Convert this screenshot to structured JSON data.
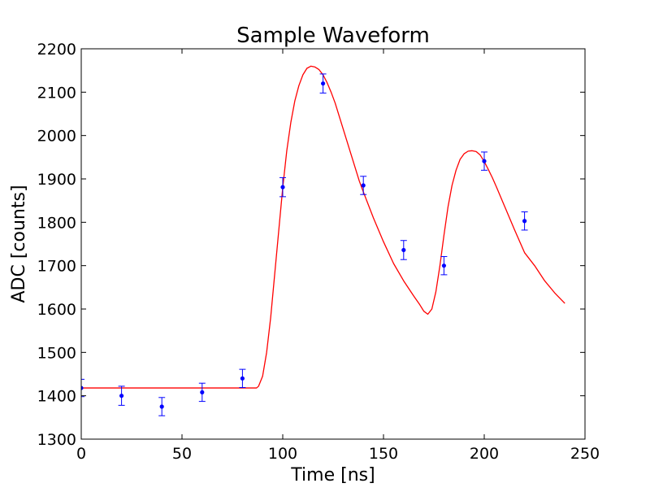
{
  "chart_data": {
    "type": "scatter",
    "title": "Sample Waveform",
    "xlabel": "Time [ns]",
    "ylabel": "ADC [counts]",
    "xlim": [
      0,
      250
    ],
    "ylim": [
      1300,
      2200
    ],
    "xticks": [
      0,
      50,
      100,
      150,
      200,
      250
    ],
    "yticks": [
      1300,
      1400,
      1500,
      1600,
      1700,
      1800,
      1900,
      2000,
      2100,
      2200
    ],
    "grid": false,
    "legend": "none",
    "series": [
      {
        "kind": "points_with_errorbars",
        "color": "#0000ff",
        "x": [
          0,
          20,
          40,
          60,
          80,
          100,
          120,
          140,
          160,
          180,
          200,
          220
        ],
        "y": [
          1418,
          1400,
          1375,
          1408,
          1440,
          1881,
          2120,
          1885,
          1736,
          1700,
          1941,
          1803
        ],
        "yerr": [
          20,
          22,
          21,
          21,
          21,
          22,
          22,
          21,
          22,
          21,
          21,
          21
        ]
      },
      {
        "kind": "fit_line",
        "color": "#ff0000",
        "x": [
          0,
          87,
          88,
          90,
          92,
          94,
          96,
          98,
          100,
          102,
          104,
          106,
          108,
          110,
          112,
          114,
          116,
          118,
          120,
          122,
          124,
          126,
          128,
          130,
          132,
          134,
          136,
          138,
          140,
          145,
          150,
          155,
          160,
          165,
          168,
          170,
          172,
          174,
          176,
          178,
          180,
          182,
          184,
          186,
          188,
          190,
          192,
          194,
          196,
          198,
          200,
          202,
          204,
          206,
          208,
          210,
          215,
          220,
          225,
          230,
          235,
          240
        ],
        "y": [
          1418,
          1418,
          1422,
          1445,
          1500,
          1580,
          1680,
          1780,
          1880,
          1965,
          2030,
          2080,
          2115,
          2140,
          2155,
          2160,
          2158,
          2152,
          2140,
          2122,
          2100,
          2075,
          2045,
          2015,
          1985,
          1955,
          1925,
          1895,
          1870,
          1810,
          1755,
          1705,
          1665,
          1630,
          1610,
          1595,
          1588,
          1600,
          1640,
          1700,
          1770,
          1835,
          1885,
          1920,
          1945,
          1958,
          1964,
          1965,
          1963,
          1955,
          1940,
          1922,
          1903,
          1882,
          1860,
          1838,
          1783,
          1730,
          1700,
          1665,
          1637,
          1613
        ]
      }
    ]
  }
}
